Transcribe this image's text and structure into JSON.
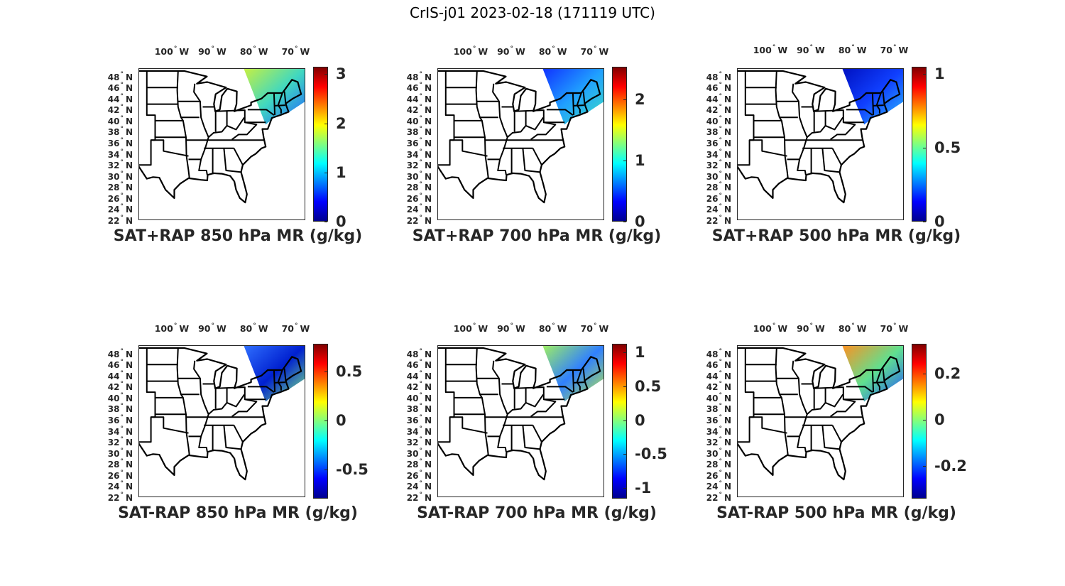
{
  "figure_title": "CrIS-j01 2023-02-18 (171119 UTC)",
  "lon_labels": [
    {
      "deg": "100",
      "hemi": "W",
      "lon": -100
    },
    {
      "deg": "90",
      "hemi": "W",
      "lon": -90
    },
    {
      "deg": "80",
      "hemi": "W",
      "lon": -80
    },
    {
      "deg": "70",
      "hemi": "W",
      "lon": -70
    }
  ],
  "lat_labels": [
    {
      "deg": "48",
      "hemi": "N",
      "lat": 48
    },
    {
      "deg": "46",
      "hemi": "N",
      "lat": 46
    },
    {
      "deg": "44",
      "hemi": "N",
      "lat": 44
    },
    {
      "deg": "42",
      "hemi": "N",
      "lat": 42
    },
    {
      "deg": "40",
      "hemi": "N",
      "lat": 40
    },
    {
      "deg": "38",
      "hemi": "N",
      "lat": 38
    },
    {
      "deg": "36",
      "hemi": "N",
      "lat": 36
    },
    {
      "deg": "34",
      "hemi": "N",
      "lat": 34
    },
    {
      "deg": "32",
      "hemi": "N",
      "lat": 32
    },
    {
      "deg": "30",
      "hemi": "N",
      "lat": 30
    },
    {
      "deg": "28",
      "hemi": "N",
      "lat": 28
    },
    {
      "deg": "26",
      "hemi": "N",
      "lat": 26
    },
    {
      "deg": "24",
      "hemi": "N",
      "lat": 24
    },
    {
      "deg": "22",
      "hemi": "N",
      "lat": 22
    }
  ],
  "panels": [
    {
      "title": "SAT+RAP 850 hPa MR (g/kg)",
      "clim": [
        0,
        3.15
      ],
      "ticks": [
        {
          "v": 0,
          "label": "0"
        },
        {
          "v": 1,
          "label": "1"
        },
        {
          "v": 2,
          "label": "2"
        },
        {
          "v": 3,
          "label": "3"
        }
      ],
      "swath_colors": [
        "#c8f040",
        "#40d8c0",
        "#2060ff"
      ]
    },
    {
      "title": "SAT+RAP 700 hPa MR (g/kg)",
      "clim": [
        0,
        2.53
      ],
      "ticks": [
        {
          "v": 0,
          "label": "0"
        },
        {
          "v": 1,
          "label": "1"
        },
        {
          "v": 2,
          "label": "2"
        }
      ],
      "swath_colors": [
        "#1030ff",
        "#20a0ff",
        "#40e0c0"
      ]
    },
    {
      "title": "SAT+RAP 500 hPa MR (g/kg)",
      "clim": [
        0,
        1.05
      ],
      "ticks": [
        {
          "v": 0,
          "label": "0"
        },
        {
          "v": 0.5,
          "label": "0.5"
        },
        {
          "v": 1,
          "label": "1"
        }
      ],
      "swath_colors": [
        "#0010c0",
        "#1040ff",
        "#30c0ff"
      ]
    },
    {
      "title": "SAT-RAP 850 hPa MR (g/kg)",
      "clim": [
        -0.8,
        0.78
      ],
      "ticks": [
        {
          "v": -0.5,
          "label": "-0.5"
        },
        {
          "v": 0,
          "label": "0"
        },
        {
          "v": 0.5,
          "label": "0.5"
        }
      ],
      "swath_colors": [
        "#3070ff",
        "#0020d0",
        "#80f080"
      ]
    },
    {
      "title": "SAT-RAP 700 hPa MR (g/kg)",
      "clim": [
        -1.16,
        1.13
      ],
      "ticks": [
        {
          "v": -1,
          "label": "-1"
        },
        {
          "v": -0.5,
          "label": "-0.5"
        },
        {
          "v": 0,
          "label": "0"
        },
        {
          "v": 0.5,
          "label": "0.5"
        },
        {
          "v": 1,
          "label": "1"
        }
      ],
      "swath_colors": [
        "#a0f060",
        "#3080ff",
        "#c0f040"
      ]
    },
    {
      "title": "SAT-RAP 500 hPa MR (g/kg)",
      "clim": [
        -0.34,
        0.33
      ],
      "ticks": [
        {
          "v": -0.2,
          "label": "-0.2"
        },
        {
          "v": 0,
          "label": "0"
        },
        {
          "v": 0.2,
          "label": "0.2"
        }
      ],
      "swath_colors": [
        "#ff9020",
        "#60e090",
        "#2050ff"
      ]
    }
  ]
}
